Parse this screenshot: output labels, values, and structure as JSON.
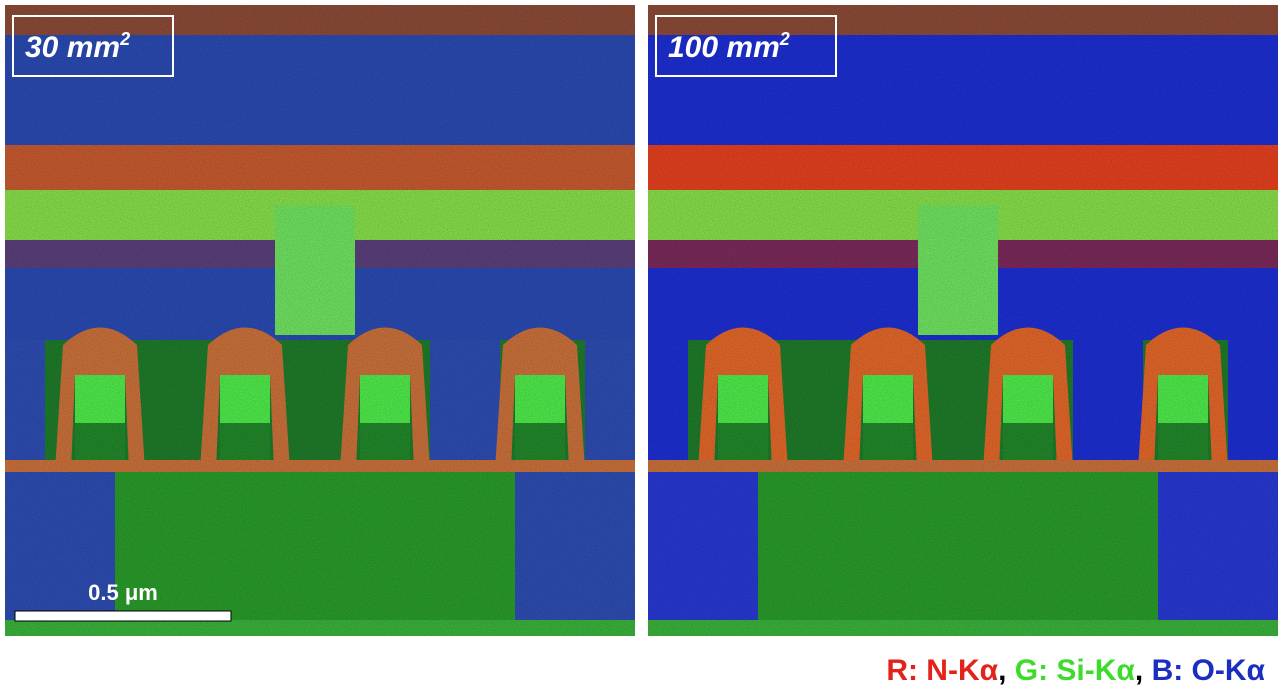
{
  "panels": [
    {
      "label": "30 mm",
      "superscript": "2"
    },
    {
      "label": "100 mm",
      "superscript": "2"
    }
  ],
  "scale_bar": "0.5 μm",
  "legend": {
    "items": [
      {
        "text": "R: N-Kα",
        "color": "#e3231b"
      },
      {
        "text": "G: Si-Kα",
        "color": "#3ddc2a"
      },
      {
        "text": "B: O-Kα",
        "color": "#1a2fc0"
      }
    ],
    "separator": ","
  }
}
